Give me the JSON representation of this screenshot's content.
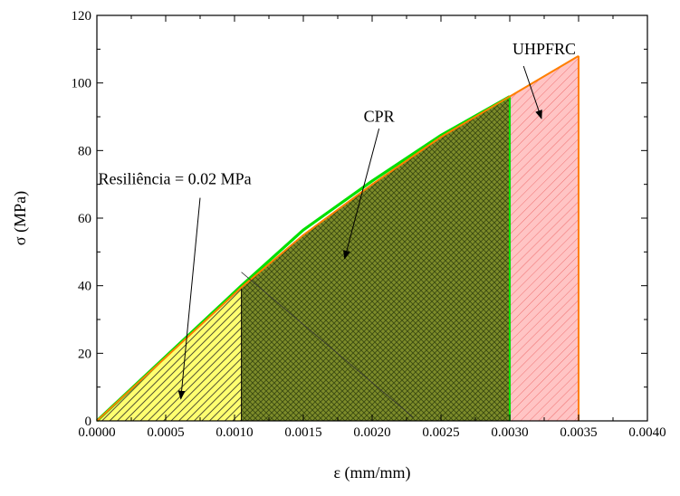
{
  "chart_data": {
    "type": "area",
    "xlabel": "ε (mm/mm)",
    "ylabel": "σ (MPa)",
    "xlim": [
      0,
      0.004
    ],
    "ylim": [
      0,
      120
    ],
    "xticks": [
      "0.0000",
      "0.0005",
      "0.0010",
      "0.0015",
      "0.0020",
      "0.0025",
      "0.0030",
      "0.0035",
      "0.0040"
    ],
    "yticks": [
      "0",
      "20",
      "40",
      "60",
      "80",
      "100",
      "120"
    ],
    "grid": false,
    "series": [
      {
        "name": "UHPFRC",
        "color": "#ff7f00",
        "x": [
          0,
          0.00105,
          0.0015,
          0.002,
          0.0025,
          0.003,
          0.0035
        ],
        "y": [
          0,
          39.5,
          55,
          70,
          84,
          96,
          108
        ]
      },
      {
        "name": "CPR",
        "color": "#00e000",
        "x": [
          0,
          0.00105,
          0.0015,
          0.002,
          0.0025,
          0.003
        ],
        "y": [
          0,
          40,
          56.5,
          71,
          84.5,
          96
        ]
      }
    ],
    "regions": [
      {
        "name": "resiliencia",
        "x_range": [
          0,
          0.00105
        ],
        "fill": "#ffff70",
        "hatch": "dense diagonal"
      },
      {
        "name": "CPR",
        "x_range": [
          0.00105,
          0.003
        ],
        "fill": "#7f8f2a",
        "hatch": "crosshatch"
      },
      {
        "name": "UHPFRC",
        "x_range": [
          0.003,
          0.0035
        ],
        "fill": "#ffc0c0",
        "hatch": "diagonal"
      }
    ],
    "annotations": [
      {
        "text": "UHPFRC",
        "color": "#ff0000"
      },
      {
        "text": "CPR",
        "color": "#00d000"
      },
      {
        "text": "Resiliência = 0.02 MPa",
        "color": "#000000"
      }
    ]
  }
}
